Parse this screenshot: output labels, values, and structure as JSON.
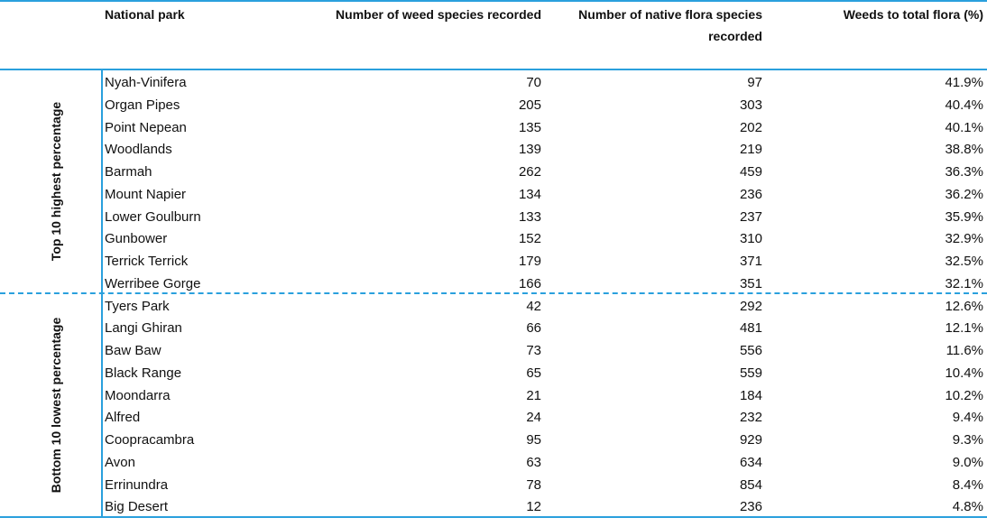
{
  "headers": {
    "park": "National park",
    "weed": "Number of weed species recorded",
    "native_line1": "Number of native flora species",
    "native_line2": "recorded",
    "pct": "Weeds to total flora (%)"
  },
  "groups": {
    "top": "Top 10 highest percentage",
    "bottom": "Bottom 10 lowest percentage"
  },
  "rows": [
    {
      "park": "Nyah-Vinifera",
      "weed": "70",
      "native": "97",
      "pct": "41.9%"
    },
    {
      "park": "Organ Pipes",
      "weed": "205",
      "native": "303",
      "pct": "40.4%"
    },
    {
      "park": "Point Nepean",
      "weed": "135",
      "native": "202",
      "pct": "40.1%"
    },
    {
      "park": "Woodlands",
      "weed": "139",
      "native": "219",
      "pct": "38.8%"
    },
    {
      "park": "Barmah",
      "weed": "262",
      "native": "459",
      "pct": "36.3%"
    },
    {
      "park": "Mount Napier",
      "weed": "134",
      "native": "236",
      "pct": "36.2%"
    },
    {
      "park": "Lower Goulburn",
      "weed": "133",
      "native": "237",
      "pct": "35.9%"
    },
    {
      "park": "Gunbower",
      "weed": "152",
      "native": "310",
      "pct": "32.9%"
    },
    {
      "park": "Terrick Terrick",
      "weed": "179",
      "native": "371",
      "pct": "32.5%"
    },
    {
      "park": "Werribee Gorge",
      "weed": "166",
      "native": "351",
      "pct": "32.1%"
    },
    {
      "park": "Tyers Park",
      "weed": "42",
      "native": "292",
      "pct": "12.6%"
    },
    {
      "park": "Langi Ghiran",
      "weed": "66",
      "native": "481",
      "pct": "12.1%"
    },
    {
      "park": "Baw Baw",
      "weed": "73",
      "native": "556",
      "pct": "11.6%"
    },
    {
      "park": "Black Range",
      "weed": "65",
      "native": "559",
      "pct": "10.4%"
    },
    {
      "park": "Moondarra",
      "weed": "21",
      "native": "184",
      "pct": "10.2%"
    },
    {
      "park": "Alfred",
      "weed": "24",
      "native": "232",
      "pct": "9.4%"
    },
    {
      "park": "Coopracambra",
      "weed": "95",
      "native": "929",
      "pct": "9.3%"
    },
    {
      "park": "Avon",
      "weed": "63",
      "native": "634",
      "pct": "9.0%"
    },
    {
      "park": "Errinundra",
      "weed": "78",
      "native": "854",
      "pct": "8.4%"
    },
    {
      "park": "Big Desert",
      "weed": "12",
      "native": "236",
      "pct": "4.8%"
    }
  ],
  "colors": {
    "rule": "#2aa0dd"
  }
}
